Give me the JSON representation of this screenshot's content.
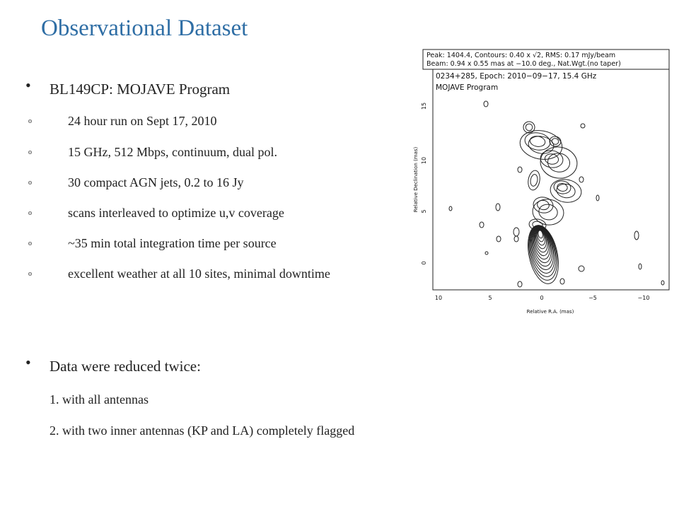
{
  "title": "Observational Dataset",
  "sections": [
    {
      "heading": "BL149CP: MOJAVE Program",
      "items": [
        "24 hour run on  Sept 17, 2010",
        "15 GHz, 512 Mbps, continuum, dual pol.",
        "30 compact AGN jets, 0.2 to 16 Jy",
        "scans interleaved to optimize u,v coverage",
        "~35 min total  integration time per source",
        "excellent weather at all 10 sites, minimal downtime"
      ]
    },
    {
      "heading": "Data were reduced twice:",
      "items": [
        "1. with all antennas",
        "2. with two inner antennas (KP and LA) completely flagged"
      ]
    }
  ],
  "figure": {
    "header": [
      "Peak: 1404.4, Contours: 0.40 x √2, RMS: 0.17 mJy/beam",
      "Beam: 0.94 x 0.55 mas at −10.0 deg., Nat.Wgt.(no taper)"
    ],
    "legend": [
      "0234+285, Epoch: 2010−09−17, 15.4 GHz",
      "MOJAVE Program"
    ],
    "y_label": "Relative Declination (mas)",
    "x_label": "Relative R.A. (mas)",
    "yticks": [
      "15",
      "10",
      "5",
      "0"
    ],
    "xticks": [
      "10",
      "5",
      "0",
      "−5",
      "−10"
    ]
  }
}
